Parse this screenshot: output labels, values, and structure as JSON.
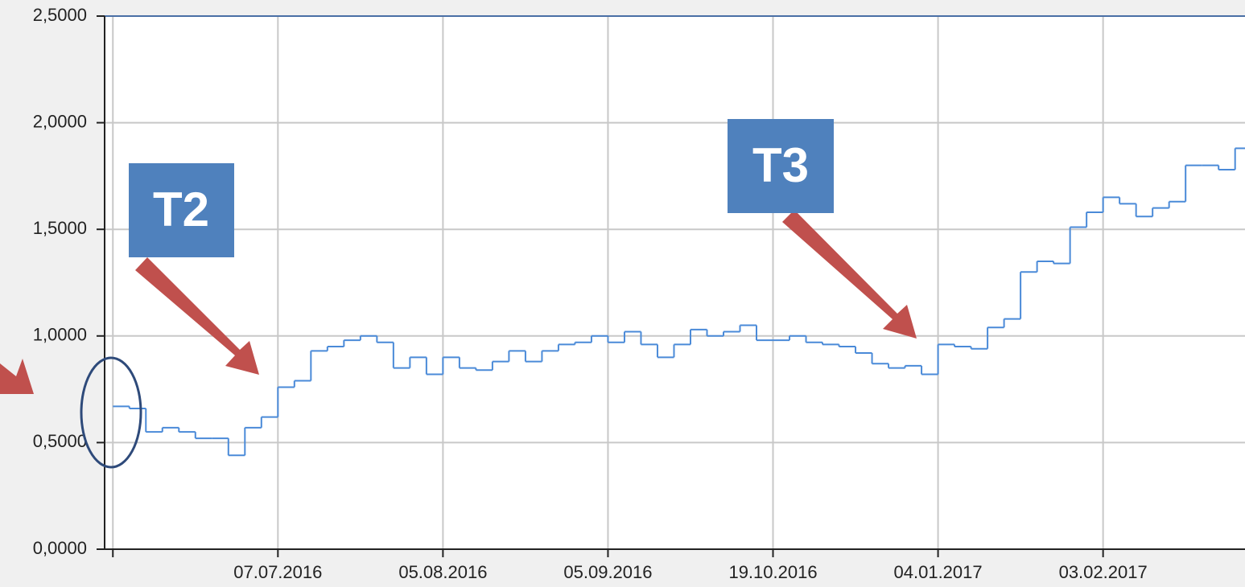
{
  "chart_data": {
    "type": "line",
    "x": [
      0,
      1,
      2,
      3,
      4,
      5,
      6,
      7,
      8,
      9,
      10,
      11,
      12,
      13,
      14,
      15,
      16,
      17,
      18,
      19,
      20,
      21,
      22,
      23,
      24,
      25,
      26,
      27,
      28,
      29,
      30,
      31,
      32,
      33,
      34,
      35,
      36,
      37,
      38,
      39,
      40,
      41,
      42,
      43,
      44,
      45,
      46,
      47,
      48,
      49,
      50,
      51,
      52,
      53,
      54,
      55,
      56,
      57,
      58,
      59,
      60,
      61,
      62,
      63,
      64,
      65,
      66,
      67,
      68
    ],
    "series": [
      {
        "color": "#4a8ad8",
        "values": [
          0.67,
          0.66,
          0.55,
          0.57,
          0.55,
          0.52,
          0.52,
          0.44,
          0.57,
          0.62,
          0.76,
          0.79,
          0.93,
          0.95,
          0.98,
          1.0,
          0.97,
          0.85,
          0.9,
          0.82,
          0.9,
          0.85,
          0.84,
          0.88,
          0.93,
          0.88,
          0.93,
          0.96,
          0.97,
          1.0,
          0.97,
          1.02,
          0.96,
          0.9,
          0.96,
          1.03,
          1.0,
          1.02,
          1.05,
          0.98,
          0.98,
          1.0,
          0.97,
          0.96,
          0.95,
          0.92,
          0.87,
          0.85,
          0.86,
          0.82,
          0.96,
          0.95,
          0.94,
          1.04,
          1.08,
          1.3,
          1.35,
          1.34,
          1.51,
          1.58,
          1.65,
          1.62,
          1.56,
          1.6,
          1.63,
          1.8,
          1.8,
          1.78,
          1.88
        ]
      }
    ],
    "xlim": [
      -0.5,
      68.6
    ],
    "xticks": [
      0,
      {
        "value": 10,
        "label": "07.07.2016"
      },
      {
        "value": 20,
        "label": "05.08.2016"
      },
      {
        "value": 30,
        "label": "05.09.2016"
      },
      {
        "value": 40,
        "label": "19.10.2016"
      },
      {
        "value": 50,
        "label": "04.01.2017"
      },
      {
        "value": 60,
        "label": "03.02.2017"
      }
    ],
    "ylim": [
      0,
      2.5
    ],
    "yticks": [
      {
        "value": 0,
        "label": "0,0000"
      },
      {
        "value": 0.5,
        "label": "0,5000"
      },
      {
        "value": 1,
        "label": "1,0000"
      },
      {
        "value": 1.5,
        "label": "1,5000"
      },
      {
        "value": 2,
        "label": "2,0000"
      },
      {
        "value": 2.5,
        "label": "2,5000"
      }
    ],
    "grid": true,
    "annotations": [
      "T2",
      "T3"
    ]
  }
}
